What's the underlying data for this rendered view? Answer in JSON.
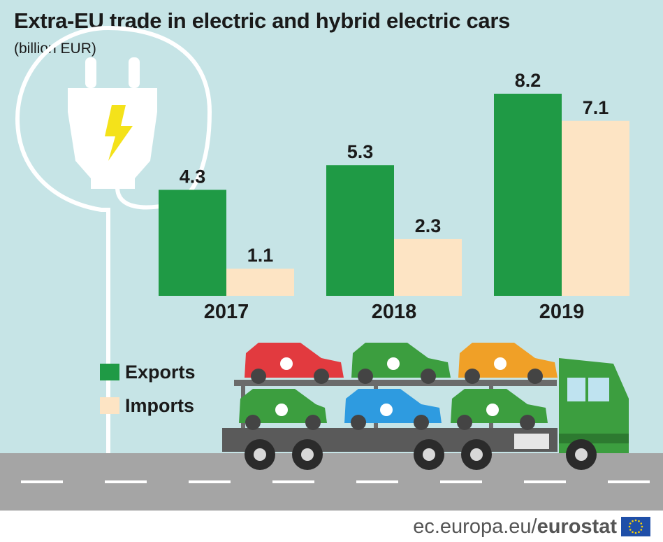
{
  "header": {
    "title": "Extra-EU trade in electric and hybrid electric cars",
    "subtitle": "(billion EUR)"
  },
  "chart_data": {
    "type": "bar",
    "title": "Extra-EU trade in electric and hybrid electric cars",
    "subtitle": "(billion EUR)",
    "categories": [
      "2017",
      "2018",
      "2019"
    ],
    "series": [
      {
        "name": "Exports",
        "values": [
          4.3,
          5.3,
          8.2
        ],
        "color": "#1f9a45"
      },
      {
        "name": "Imports",
        "values": [
          1.1,
          2.3,
          7.1
        ],
        "color": "#fde4c4"
      }
    ],
    "xlabel": "",
    "ylabel": "",
    "ylim": [
      0,
      8.2
    ],
    "grid": false,
    "legend": "bottom-left"
  },
  "legend": {
    "items": [
      {
        "label": "Exports",
        "color": "#1f9a45"
      },
      {
        "label": "Imports",
        "color": "#fde4c4"
      }
    ]
  },
  "illustration": {
    "plug_icon": "electric-plug-icon",
    "truck_icon": "car-transporter-truck-icon",
    "car_colors": [
      "#e23a3f",
      "#3c9e3f",
      "#f0a027",
      "#3c9e3f",
      "#2e9be0",
      "#3c9e3f"
    ]
  },
  "footer": {
    "url": "ec.europa.eu/",
    "brand": "eurostat"
  },
  "colors": {
    "background": "#c6e4e6",
    "road": "#a5a5a5",
    "text": "#1a1a1a"
  }
}
